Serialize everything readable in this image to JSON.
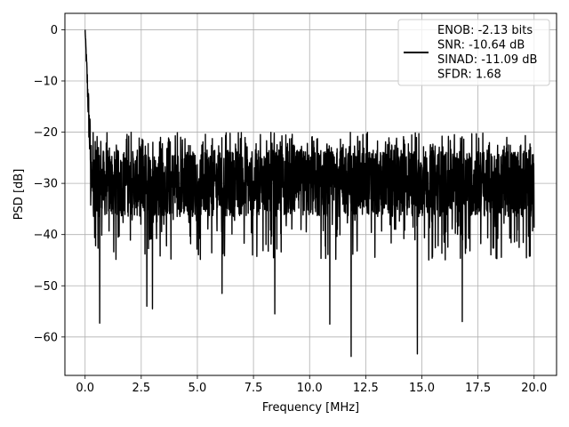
{
  "chart_data": {
    "type": "line",
    "xlabel": "Frequency [MHz]",
    "ylabel": "PSD [dB]",
    "xlim": [
      -0.9,
      21.0
    ],
    "ylim": [
      -67.5,
      3.2
    ],
    "xticks": [
      0.0,
      2.5,
      5.0,
      7.5,
      10.0,
      12.5,
      15.0,
      17.5,
      20.0
    ],
    "xtick_labels": [
      "0.0",
      "2.5",
      "5.0",
      "7.5",
      "10.0",
      "12.5",
      "15.0",
      "17.5",
      "20.0"
    ],
    "yticks": [
      0,
      -10,
      -20,
      -30,
      -40,
      -50,
      -60
    ],
    "ytick_labels": [
      "0",
      "−10",
      "−20",
      "−30",
      "−40",
      "−50",
      "−60"
    ],
    "grid": true,
    "legend_position": "top-right",
    "legend_lines": [
      "ENOB: -2.13 bits",
      "SNR: -10.64 dB",
      "SINAD: -11.09 dB",
      "SFDR: 1.68"
    ],
    "line_color": "#000000",
    "noise_floor_db": -30,
    "noise_band_db": [
      -20,
      -37
    ],
    "peak": {
      "x": 0.0,
      "y": 0.0
    },
    "notable_points": [
      {
        "x": 0.65,
        "y": -57.3
      },
      {
        "x": 2.75,
        "y": -54.0
      },
      {
        "x": 3.0,
        "y": -54.5
      },
      {
        "x": 6.1,
        "y": -51.5
      },
      {
        "x": 8.45,
        "y": -55.5
      },
      {
        "x": 10.9,
        "y": -57.5
      },
      {
        "x": 11.85,
        "y": -63.8
      },
      {
        "x": 14.8,
        "y": -63.3
      },
      {
        "x": 16.8,
        "y": -57.0
      }
    ]
  }
}
